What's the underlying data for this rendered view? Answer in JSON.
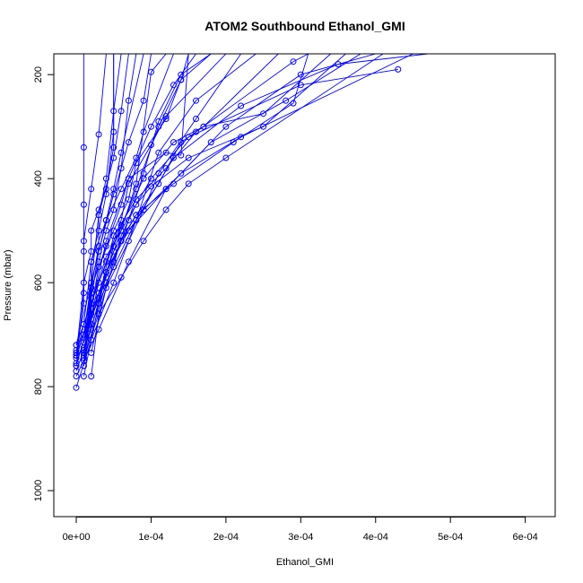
{
  "chart_data": {
    "type": "line",
    "title": "ATOM2 Southbound Ethanol_GMI",
    "xlabel": "Ethanol_GMI",
    "ylabel": "Pressure (mbar)",
    "xlim": [
      -3e-05,
      0.00064
    ],
    "ylim": [
      1050,
      160
    ],
    "y_reversed": true,
    "x_ticks": [
      0,
      0.0001,
      0.0002,
      0.0003,
      0.0004,
      0.0005,
      0.0006
    ],
    "x_tick_labels": [
      "0e+00",
      "1e-04",
      "2e-04",
      "3e-04",
      "4e-04",
      "5e-04",
      "6e-04"
    ],
    "y_ticks": [
      200,
      400,
      600,
      800,
      1000
    ],
    "y_tick_labels": [
      "200",
      "400",
      "600",
      "800",
      "1000"
    ],
    "grid": false,
    "colors": {
      "series": "#0000ff"
    },
    "series": [
      {
        "values": [
          [
            0.0,
            802
          ],
          [
            2e-05,
            710
          ],
          [
            5e-05,
            600
          ],
          [
            8e-05,
            480
          ],
          [
            0.00011,
            350
          ],
          [
            0.00016,
            250
          ],
          [
            0.00024,
            160
          ]
        ]
      },
      {
        "values": [
          [
            0.0,
            780
          ],
          [
            3e-05,
            690
          ],
          [
            7e-05,
            560
          ],
          [
            0.00012,
            420
          ],
          [
            0.0002,
            300
          ],
          [
            0.0003,
            200
          ],
          [
            0.0004,
            160
          ]
        ]
      },
      {
        "values": [
          [
            1e-05,
            760
          ],
          [
            2e-05,
            650
          ],
          [
            4e-05,
            520
          ],
          [
            7e-05,
            400
          ],
          [
            0.0001,
            300
          ],
          [
            0.00013,
            220
          ],
          [
            0.00016,
            160
          ]
        ]
      },
      {
        "values": [
          [
            0.0,
            740
          ],
          [
            3e-05,
            620
          ],
          [
            6e-05,
            500
          ],
          [
            0.0001,
            400
          ],
          [
            0.00015,
            320
          ],
          [
            0.0003,
            220
          ],
          [
            0.00043,
            190
          ]
        ]
      },
      {
        "values": [
          [
            1e-05,
            750
          ],
          [
            4e-05,
            600
          ],
          [
            8e-05,
            480
          ],
          [
            0.00013,
            360
          ],
          [
            0.00022,
            260
          ],
          [
            0.00035,
            180
          ],
          [
            0.00047,
            160
          ]
        ]
      },
      {
        "values": [
          [
            0.0,
            720
          ],
          [
            2e-05,
            600
          ],
          [
            3e-05,
            470
          ],
          [
            5e-05,
            360
          ],
          [
            6e-05,
            270
          ],
          [
            7e-05,
            160
          ]
        ]
      },
      {
        "values": [
          [
            1e-05,
            780
          ],
          [
            3e-05,
            640
          ],
          [
            5e-05,
            530
          ],
          [
            8e-05,
            420
          ],
          [
            0.00011,
            300
          ],
          [
            0.00014,
            210
          ],
          [
            0.00018,
            160
          ]
        ]
      },
      {
        "values": [
          [
            0.0,
            735
          ],
          [
            1e-05,
            640
          ],
          [
            1e-05,
            540
          ],
          [
            1e-05,
            450
          ],
          [
            1e-05,
            340
          ],
          [
            1e-05,
            160
          ]
        ]
      },
      {
        "values": [
          [
            2e-05,
            780
          ],
          [
            3e-05,
            660
          ],
          [
            5e-05,
            560
          ],
          [
            7e-05,
            480
          ],
          [
            9e-05,
            390
          ],
          [
            0.00011,
            290
          ],
          [
            0.00014,
            200
          ],
          [
            0.00018,
            160
          ]
        ]
      },
      {
        "values": [
          [
            0.0,
            760
          ],
          [
            2e-05,
            660
          ],
          [
            4e-05,
            580
          ],
          [
            7e-05,
            500
          ],
          [
            0.00012,
            420
          ],
          [
            0.00018,
            330
          ],
          [
            0.00028,
            250
          ],
          [
            0.00038,
            160
          ]
        ]
      },
      {
        "values": [
          [
            1e-05,
            730
          ],
          [
            3e-05,
            600
          ],
          [
            6e-05,
            490
          ],
          [
            9e-05,
            400
          ],
          [
            0.00013,
            330
          ],
          [
            0.00017,
            300
          ],
          [
            0.00025,
            275
          ],
          [
            0.00034,
            160
          ]
        ]
      },
      {
        "values": [
          [
            0.0,
            740
          ],
          [
            1e-05,
            680
          ],
          [
            2e-05,
            560
          ],
          [
            4e-05,
            480
          ],
          [
            5e-05,
            420
          ],
          [
            6e-05,
            350
          ],
          [
            9e-05,
            160
          ]
        ]
      },
      {
        "values": [
          [
            1e-05,
            700
          ],
          [
            2e-05,
            600
          ],
          [
            3e-05,
            540
          ],
          [
            5e-05,
            430
          ],
          [
            7e-05,
            330
          ],
          [
            9e-05,
            250
          ],
          [
            0.0001,
            160
          ]
        ]
      },
      {
        "values": [
          [
            0.0,
            730
          ],
          [
            3e-05,
            630
          ],
          [
            5e-05,
            510
          ],
          [
            8e-05,
            440
          ],
          [
            0.00012,
            380
          ],
          [
            0.00016,
            310
          ],
          [
            0.00029,
            175
          ],
          [
            0.00031,
            160
          ]
        ]
      },
      {
        "values": [
          [
            1e-05,
            745
          ],
          [
            2e-05,
            610
          ],
          [
            4e-05,
            530
          ],
          [
            6e-05,
            450
          ],
          [
            7e-05,
            400
          ],
          [
            0.00012,
            350
          ],
          [
            0.00014,
            355
          ],
          [
            0.00015,
            160
          ]
        ]
      },
      {
        "values": [
          [
            0.0,
            760
          ],
          [
            1e-05,
            620
          ],
          [
            1e-05,
            520
          ],
          [
            2e-05,
            420
          ],
          [
            3e-05,
            315
          ],
          [
            4e-05,
            160
          ]
        ]
      },
      {
        "values": [
          [
            0.0,
            720
          ],
          [
            2e-05,
            640
          ],
          [
            4e-05,
            560
          ],
          [
            6e-05,
            480
          ],
          [
            7e-05,
            410
          ],
          [
            0.0001,
            335
          ],
          [
            0.00012,
            280
          ],
          [
            0.0002,
            160
          ]
        ]
      },
      {
        "values": [
          [
            1e-05,
            740
          ],
          [
            2e-05,
            640
          ],
          [
            4e-05,
            550
          ],
          [
            6e-05,
            500
          ],
          [
            8e-05,
            410
          ],
          [
            0.0001,
            195
          ],
          [
            0.00012,
            160
          ]
        ]
      },
      {
        "values": [
          [
            2e-05,
            735
          ],
          [
            4e-05,
            610
          ],
          [
            7e-05,
            520
          ],
          [
            9e-05,
            460
          ],
          [
            0.00011,
            390
          ],
          [
            0.00016,
            285
          ],
          [
            0.00022,
            160
          ]
        ]
      },
      {
        "values": [
          [
            0.0,
            770
          ],
          [
            2e-05,
            690
          ],
          [
            4e-05,
            580
          ],
          [
            6e-05,
            520
          ],
          [
            8e-05,
            470
          ],
          [
            0.00013,
            410
          ],
          [
            0.00021,
            330
          ],
          [
            0.00029,
            255
          ],
          [
            0.00031,
            160
          ]
        ]
      },
      {
        "values": [
          [
            1e-05,
            725
          ],
          [
            3e-05,
            620
          ],
          [
            5e-05,
            540
          ],
          [
            8e-05,
            470
          ],
          [
            0.00011,
            410
          ],
          [
            0.00014,
            330
          ],
          [
            0.00017,
            300
          ],
          [
            0.00027,
            160
          ]
        ]
      },
      {
        "values": [
          [
            1e-05,
            760
          ],
          [
            2e-05,
            680
          ],
          [
            2e-05,
            560
          ],
          [
            3e-05,
            500
          ],
          [
            4e-05,
            430
          ],
          [
            5e-05,
            310
          ],
          [
            5e-05,
            160
          ]
        ]
      },
      {
        "values": [
          [
            0.0,
            755
          ],
          [
            2e-05,
            670
          ],
          [
            4e-05,
            590
          ],
          [
            6e-05,
            520
          ],
          [
            9e-05,
            460
          ],
          [
            0.00014,
            390
          ],
          [
            0.00022,
            320
          ],
          [
            0.00045,
            160
          ]
        ]
      },
      {
        "values": [
          [
            1e-05,
            735
          ],
          [
            2e-05,
            630
          ],
          [
            3e-05,
            540
          ],
          [
            4e-05,
            480
          ],
          [
            6e-05,
            420
          ],
          [
            8e-05,
            360
          ],
          [
            9e-05,
            310
          ],
          [
            0.00013,
            160
          ]
        ]
      },
      {
        "values": [
          [
            0.0,
            745
          ],
          [
            2e-05,
            650
          ],
          [
            3e-05,
            570
          ],
          [
            5e-05,
            500
          ],
          [
            7e-05,
            440
          ],
          [
            8e-05,
            370
          ],
          [
            0.00012,
            285
          ],
          [
            0.00014,
            210
          ],
          [
            0.00015,
            160
          ]
        ]
      },
      {
        "values": [
          [
            1e-05,
            715
          ],
          [
            2e-05,
            620
          ],
          [
            3e-05,
            560
          ],
          [
            4e-05,
            500
          ],
          [
            5e-05,
            460
          ],
          [
            6e-05,
            380
          ],
          [
            7e-05,
            250
          ],
          [
            8e-05,
            160
          ]
        ]
      },
      {
        "values": [
          [
            1e-05,
            730
          ],
          [
            3e-05,
            640
          ],
          [
            5e-05,
            570
          ],
          [
            6e-05,
            510
          ],
          [
            8e-05,
            450
          ],
          [
            0.0001,
            415
          ],
          [
            0.00015,
            360
          ],
          [
            0.00025,
            300
          ],
          [
            0.00036,
            160
          ]
        ]
      },
      {
        "values": [
          [
            1e-05,
            700
          ],
          [
            2e-05,
            610
          ],
          [
            3e-05,
            530
          ],
          [
            3e-05,
            470
          ],
          [
            4e-05,
            400
          ],
          [
            5e-05,
            270
          ],
          [
            6e-05,
            160
          ]
        ]
      },
      {
        "values": [
          [
            0.0,
            740
          ],
          [
            1e-05,
            600
          ],
          [
            2e-05,
            540
          ],
          [
            2e-05,
            500
          ],
          [
            3e-05,
            460
          ],
          [
            4e-05,
            420
          ],
          [
            5e-05,
            340
          ],
          [
            5e-05,
            160
          ]
        ]
      },
      {
        "values": [
          [
            1e-05,
            745
          ],
          [
            3e-05,
            660
          ],
          [
            6e-05,
            590
          ],
          [
            9e-05,
            520
          ],
          [
            0.00012,
            460
          ],
          [
            0.00015,
            410
          ],
          [
            0.0002,
            360
          ],
          [
            0.00041,
            160
          ]
        ]
      }
    ]
  }
}
